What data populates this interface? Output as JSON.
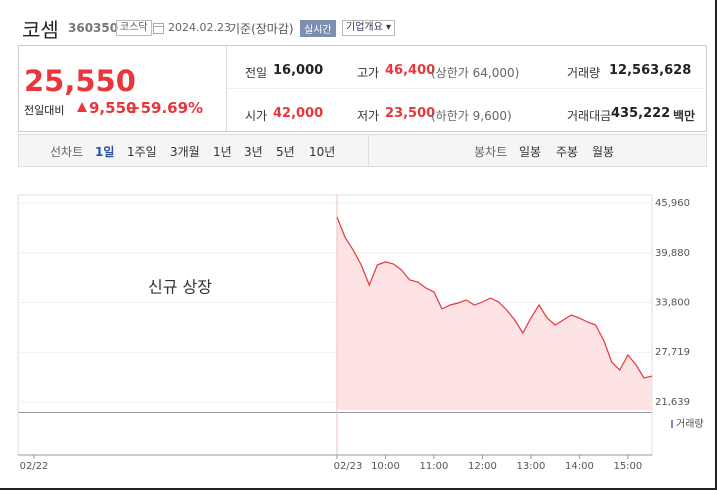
{
  "header": {
    "name": "코셈",
    "code": "360350",
    "market": "코스닥",
    "date": "2024.02.23",
    "basis": "기준(장마감)",
    "realtime": "실시간",
    "overview": "기업개요"
  },
  "quote": {
    "price": "25,550",
    "change_label": "전일대비",
    "change": "9,550",
    "change_rate": "+59.69%",
    "rows": [
      [
        {
          "label": "전일",
          "value": "16,000"
        },
        {
          "label": "고가",
          "value": "46,400",
          "note": "(상한가 64,000)"
        },
        {
          "label": "거래량",
          "value": "12,563,628"
        }
      ],
      [
        {
          "label": "시가",
          "value": "42,000"
        },
        {
          "label": "저가",
          "value": "23,500",
          "note": "(하한가 9,600)"
        },
        {
          "label": "거래대금",
          "value": "435,222",
          "unit": "백만"
        }
      ]
    ]
  },
  "tabs": {
    "line_label": "선차트",
    "line": [
      "1일",
      "1주일",
      "3개월",
      "1년",
      "3년",
      "5년",
      "10년"
    ],
    "candle_label": "봉차트",
    "candle": [
      "일봉",
      "주봉",
      "월봉"
    ]
  },
  "chart_data": {
    "type": "line",
    "annotation": "신규 상장",
    "volume_label": "거래량",
    "color": "#e8363b",
    "categories": [
      "02/22",
      "02/23",
      null,
      null,
      null,
      null,
      null,
      "10:00",
      null,
      null,
      null,
      null,
      null,
      "11:00",
      null,
      null,
      null,
      null,
      null,
      "12:00",
      null,
      null,
      null,
      null,
      null,
      "13:00",
      null,
      null,
      null,
      null,
      null,
      "14:00",
      null,
      null,
      null,
      null,
      null,
      "15:00",
      null,
      null,
      null
    ],
    "values": [
      null,
      44250,
      41760,
      40220,
      38400,
      35940,
      38400,
      38760,
      38500,
      37770,
      36550,
      36300,
      35570,
      35080,
      33000,
      33500,
      33740,
      34100,
      33500,
      33860,
      34350,
      33860,
      32880,
      31660,
      30070,
      31900,
      33500,
      31900,
      31050,
      31660,
      32270,
      31900,
      31420,
      31050,
      29200,
      26530,
      25550,
      27400,
      26170,
      24580,
      24800
    ],
    "ylim": [
      20660,
      46940
    ],
    "yticks": [
      {
        "value": 21639,
        "label": "21,639"
      },
      {
        "value": 27719,
        "label": "27,719"
      },
      {
        "value": 33800,
        "label": "33,800"
      },
      {
        "value": 39880,
        "label": "39,880"
      },
      {
        "value": 45960,
        "label": "45,960"
      }
    ],
    "grid": true
  }
}
